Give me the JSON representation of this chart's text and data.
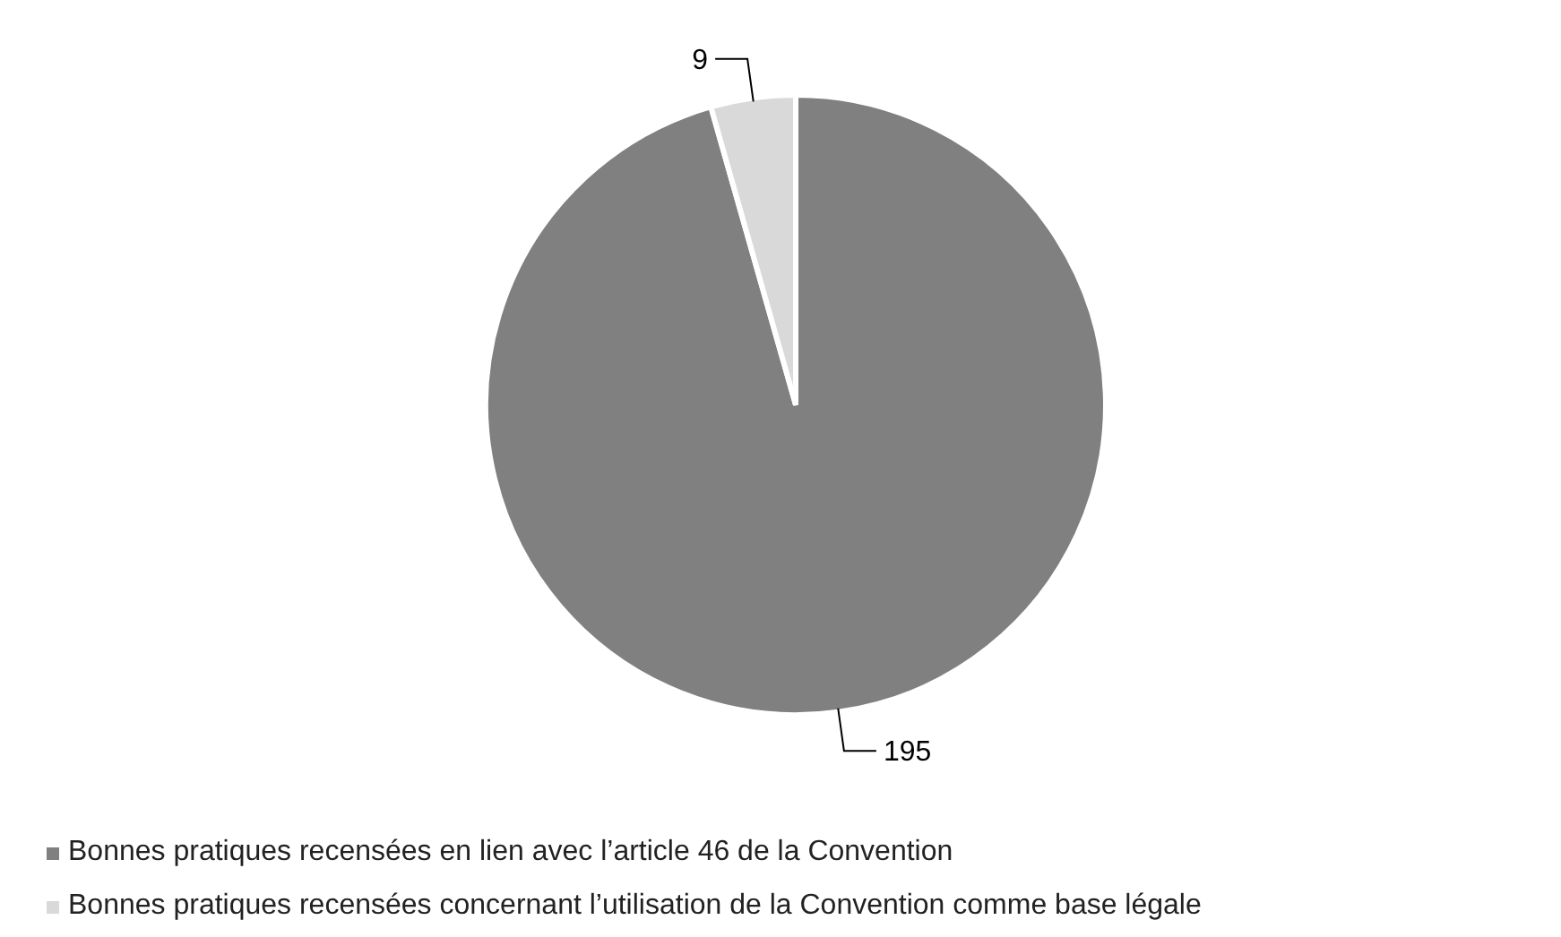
{
  "chart_data": {
    "type": "pie",
    "categories": [
      "Bonnes pratiques recensées en lien avec l’article 46 de la Convention",
      "Bonnes pratiques recensées concernant l’utilisation de la Convention comme base légale"
    ],
    "values": [
      195,
      9
    ],
    "colors": [
      "#808080",
      "#d9d9d9"
    ],
    "data_labels": true,
    "legend": "bottom"
  }
}
